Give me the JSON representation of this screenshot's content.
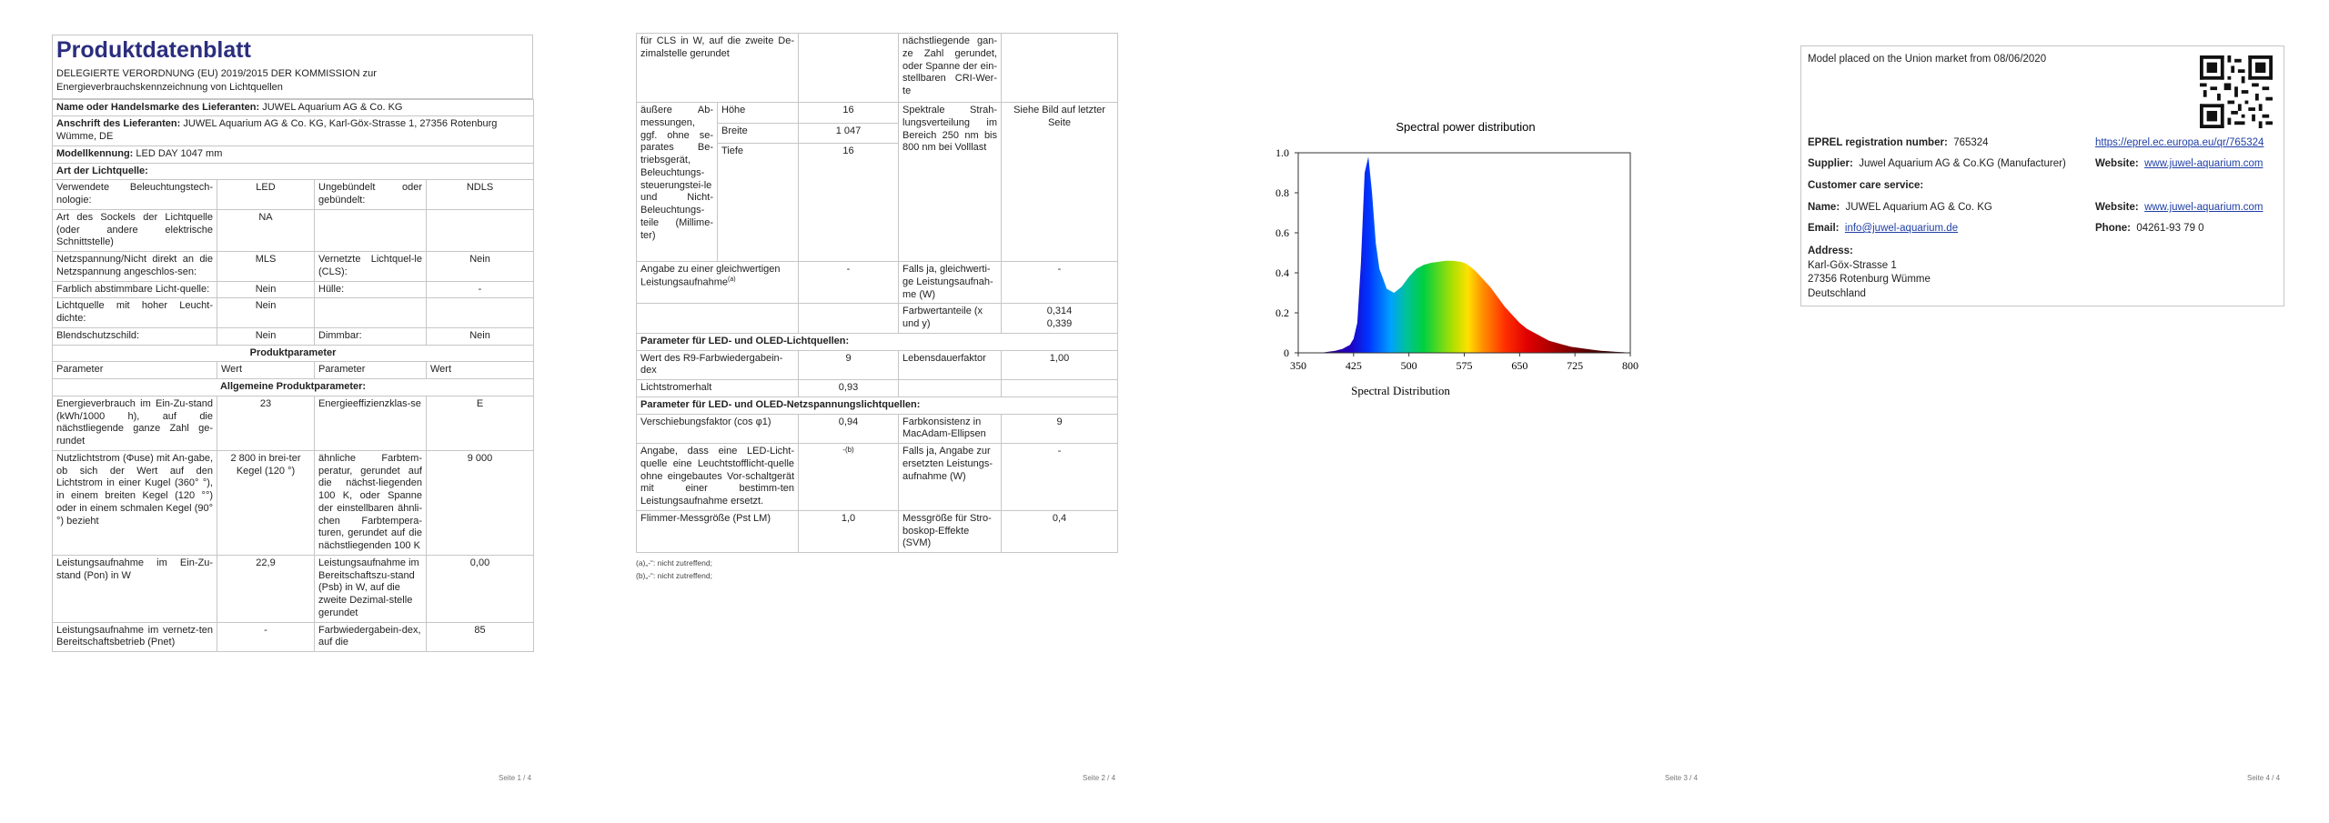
{
  "page1": {
    "title": "Produktdatenblatt",
    "regulation": "DELEGIERTE VERORDNUNG (EU) 2019/2015 DER KOMMISSION zur Energieverbrauchskennzeichnung von Lichtquellen",
    "supplier_label": "Name oder Handelsmarke des Lieferanten:",
    "supplier_value": "JUWEL Aquarium AG & Co. KG",
    "address_label": "Anschrift des Lieferanten:",
    "address_value": "JUWEL Aquarium AG & Co. KG, Karl-Göx-Strasse 1, 27356 Rotenburg Wümme, DE",
    "model_label": "Modellkennung:",
    "model_value": "LED DAY 1047 mm",
    "type_heading": "Art der Lichtquelle:",
    "rows": [
      {
        "l1": "Verwendete Beleuchtungstech-nologie:",
        "v1": "LED",
        "l2": "Ungebündelt oder gebündelt:",
        "v2": "NDLS"
      },
      {
        "l1": "Art des Sockels der Lichtquelle (oder andere elektrische Schnittstelle)",
        "v1": "NA",
        "l2": "",
        "v2": ""
      },
      {
        "l1": "Netzspannung/Nicht direkt an die Netzspannung angeschlos-sen:",
        "v1": "MLS",
        "l2": "Vernetzte Lichtquel-le (CLS):",
        "v2": "Nein"
      },
      {
        "l1": "Farblich abstimmbare Licht-quelle:",
        "v1": "Nein",
        "l2": "Hülle:",
        "v2": "-"
      },
      {
        "l1": "Lichtquelle mit hoher Leucht-dichte:",
        "v1": "Nein",
        "l2": "",
        "v2": ""
      },
      {
        "l1": "Blendschutzschild:",
        "v1": "Nein",
        "l2": "Dimmbar:",
        "v2": "Nein"
      }
    ],
    "product_params_heading": "Produktparameter",
    "col_param": "Parameter",
    "col_value": "Wert",
    "general_heading": "Allgemeine Produktparameter:",
    "p_rows": [
      {
        "l1": "Energieverbrauch im Ein-Zu-stand (kWh/1000 h), auf die nächstliegende ganze Zahl ge-rundet",
        "v1": "23",
        "l2": "Energieeffizienzklas-se",
        "v2": "E"
      },
      {
        "l1": "Nutzlichtstrom (Φuse) mit An-gabe, ob sich der Wert auf den Lichtstrom in einer Kugel (360° °), in einem breiten Kegel (120 °°) oder in einem schmalen Kegel (90° °) bezieht",
        "v1": "2 800 in brei-ter Kegel (120 °)",
        "l2": "ähnliche Farbtem-peratur, gerundet auf die nächst-liegenden 100 K, oder Spanne der einstellbaren ähnli-chen Farbtempera-turen, gerundet auf die nächstliegenden 100 K",
        "v2": "9 000"
      },
      {
        "l1": "Leistungsaufnahme im Ein-Zu-stand (Pon) in W",
        "v1": "22,9",
        "l2": "Leistungsaufnahme im Bereitschaftszu-stand (Psb) in W, auf die zweite Dezimal-stelle gerundet",
        "v2": "0,00"
      },
      {
        "l1": "Leistungsaufnahme im vernetz-ten Bereitschaftsbetrieb (Pnet)",
        "v1": "-",
        "l2": "Farbwiedergabein-dex, auf die",
        "v2": "85"
      }
    ],
    "page_number": "Seite 1 / 4"
  },
  "page2": {
    "cont_left": "für CLS in W, auf die zweite De-zimalstelle gerundet",
    "cont_right": "nächstliegende gan-ze Zahl gerundet, oder Spanne der ein-stellbaren CRI-Wer-te",
    "dims_label": "äußere Ab-messungen, ggf. ohne se-parates Be-triebsgerät, Beleuchtungs-steuerungstei-le und Nicht-Beleuchtungs-teile (Millime-ter)",
    "dims": [
      {
        "name": "Höhe",
        "value": "16"
      },
      {
        "name": "Breite",
        "value": "1 047"
      },
      {
        "name": "Tiefe",
        "value": "16"
      }
    ],
    "spectral_label": "Spektrale Strah-lungsverteilung im Bereich 250 nm bis 800 nm bei Volllast",
    "spectral_value": "Siehe Bild auf letzter Seite",
    "equiv_label": "Angabe zu einer gleichwertigen Leistungsaufnahme",
    "equiv_note": "(a)",
    "equiv_value": "-",
    "equiv_right_label": "Falls ja, gleichwerti-ge Leistungsaufnah-me (W)",
    "equiv_right_value": "-",
    "chroma_label": "Farbwertanteile (x und y)",
    "chroma_x": "0,314",
    "chroma_y": "0,339",
    "led_heading": "Parameter für LED- und OLED-Lichtquellen:",
    "r9_label": "Wert des R9-Farbwiedergabein-dex",
    "r9_value": "9",
    "life_label": "Lebensdauerfaktor",
    "life_value": "1,00",
    "maint_label": "Lichtstromerhalt",
    "maint_value": "0,93",
    "mains_heading": "Parameter für LED- und OLED-Netzspannungslichtquellen:",
    "cosphi_label": "Verschiebungsfaktor (cos φ1)",
    "cosphi_value": "0,94",
    "macadam_label": "Farbkonsistenz in MacAdam-Ellipsen",
    "macadam_value": "9",
    "replace_label": "Angabe, dass eine LED-Licht-quelle eine Leuchtstofflicht-quelle ohne eingebautes Vor-schaltgerät mit einer bestimm-ten Leistungsaufnahme ersetzt.",
    "replace_value": "-(b)",
    "replace_right_label": "Falls ja, Angabe zur ersetzten Leistungs-aufnahme (W)",
    "replace_right_value": "-",
    "flicker_label": "Flimmer-Messgröße (Pst LM)",
    "flicker_value": "1,0",
    "svm_label": "Messgröße für Stro-boskop-Effekte (SVM)",
    "svm_value": "0,4",
    "footnote_a": "(a)„-“: nicht zutreffend;",
    "footnote_b": "(b)„-“: nicht zutreffend;",
    "page_number": "Seite 2 / 4"
  },
  "page3": {
    "page_number": "Seite 3 / 4"
  },
  "chart_data": {
    "type": "area",
    "title": "Spectral power distribution",
    "xlabel": "Spectral Distribution",
    "ylabel": "",
    "xlim": [
      350,
      800
    ],
    "ylim": [
      0,
      1.0
    ],
    "x_ticks": [
      350,
      425,
      500,
      575,
      650,
      725,
      800
    ],
    "y_ticks": [
      "0",
      "0.2",
      "0.4",
      "0.6",
      "0.8",
      "1.0"
    ],
    "grid": false,
    "x": [
      380,
      390,
      400,
      410,
      420,
      425,
      430,
      435,
      440,
      445,
      450,
      455,
      460,
      465,
      470,
      480,
      490,
      500,
      510,
      520,
      530,
      540,
      550,
      560,
      570,
      575,
      580,
      590,
      600,
      610,
      620,
      630,
      640,
      650,
      660,
      670,
      680,
      690,
      700,
      710,
      720,
      730,
      740,
      750,
      760,
      770,
      780,
      790,
      800
    ],
    "y": [
      0.0,
      0.005,
      0.01,
      0.02,
      0.04,
      0.07,
      0.15,
      0.45,
      0.9,
      0.98,
      0.8,
      0.55,
      0.42,
      0.37,
      0.32,
      0.3,
      0.33,
      0.38,
      0.42,
      0.44,
      0.45,
      0.455,
      0.46,
      0.46,
      0.455,
      0.45,
      0.44,
      0.41,
      0.37,
      0.33,
      0.28,
      0.23,
      0.19,
      0.15,
      0.12,
      0.1,
      0.08,
      0.06,
      0.05,
      0.04,
      0.03,
      0.025,
      0.02,
      0.015,
      0.01,
      0.008,
      0.005,
      0.003,
      0.0
    ]
  },
  "page4": {
    "market_text": "Model placed on the Union market from 08/06/2020",
    "eprel_label": "EPREL registration number:",
    "eprel_value": "765324",
    "eprel_link": "https://eprel.ec.europa.eu/qr/765324",
    "supplier_label": "Supplier:",
    "supplier_value": "Juwel Aquarium AG & Co.KG (Manufacturer)",
    "website_label": "Website:",
    "website_value": "www.juwel-aquarium.com",
    "care_heading": "Customer care service:",
    "name_label": "Name:",
    "name_value": "JUWEL Aquarium AG & Co. KG",
    "email_label": "Email:",
    "email_value": "info@juwel-aquarium.de",
    "phone_label": "Phone:",
    "phone_value": "04261-93 79 0",
    "address_label": "Address:",
    "address_line1": "Karl-Göx-Strasse 1",
    "address_line2": "27356 Rotenburg Wümme",
    "address_line3": "Deutschland",
    "qr_icon": "qr-code-icon",
    "page_number": "Seite 4 / 4"
  }
}
